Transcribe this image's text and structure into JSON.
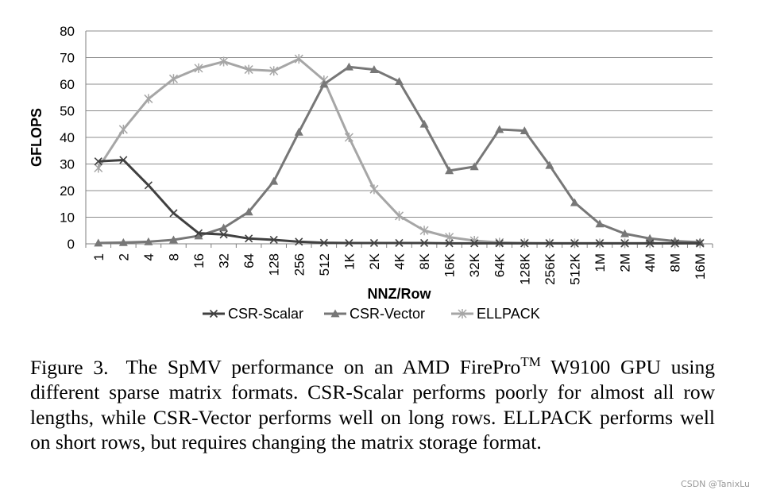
{
  "chart_data": {
    "type": "line",
    "categories": [
      "1",
      "2",
      "4",
      "8",
      "16",
      "32",
      "64",
      "128",
      "256",
      "512",
      "1K",
      "2K",
      "4K",
      "8K",
      "16K",
      "32K",
      "64K",
      "128K",
      "256K",
      "512K",
      "1M",
      "2M",
      "4M",
      "8M",
      "16M"
    ],
    "xlabel": "NNZ/Row",
    "ylabel": "GFLOPS",
    "ylim": [
      0,
      80
    ],
    "yticks": [
      0,
      10,
      20,
      30,
      40,
      50,
      60,
      70,
      80
    ],
    "grid": "horizontal",
    "legend_position": "bottom",
    "series": [
      {
        "name": "CSR-Scalar",
        "marker": "x",
        "color": "#404040",
        "values": [
          31,
          31.5,
          22,
          11.5,
          4,
          3.5,
          2,
          1.5,
          0.8,
          0.4,
          0.3,
          0.3,
          0.3,
          0.3,
          0.2,
          0.2,
          0.2,
          0.2,
          0.2,
          0.2,
          0.2,
          0.2,
          0.2,
          0.2,
          0.2
        ]
      },
      {
        "name": "CSR-Vector",
        "marker": "triangle",
        "color": "#777777",
        "values": [
          0.3,
          0.5,
          0.8,
          1.5,
          3,
          6,
          12,
          23.5,
          42,
          60,
          66.5,
          65.5,
          61,
          45,
          27.5,
          29,
          43,
          42.5,
          29.5,
          15.5,
          7.5,
          3.8,
          2,
          1,
          0.6
        ]
      },
      {
        "name": "ELLPACK",
        "marker": "asterisk",
        "color": "#a6a6a6",
        "values": [
          28.5,
          43,
          54.5,
          62,
          66,
          68.5,
          65.5,
          65,
          69.5,
          61.5,
          40,
          20.5,
          10.5,
          5,
          2.5,
          1.2,
          0.5,
          0.3,
          0.2,
          0.2,
          0.2,
          0.2,
          0.2,
          0.2,
          0.2
        ]
      }
    ]
  },
  "caption": {
    "label": "Figure 3.",
    "text_before_sup": "The SpMV performance on an AMD FirePro",
    "superscript": "TM",
    "text_after_sup": " W9100 GPU using different sparse matrix formats. CSR-Scalar performs poorly for almost all row lengths, while CSR-Vector performs well on long rows. ELLPACK performs well on short rows, but requires changing the matrix storage format."
  },
  "watermark": "CSDN @TanixLu"
}
